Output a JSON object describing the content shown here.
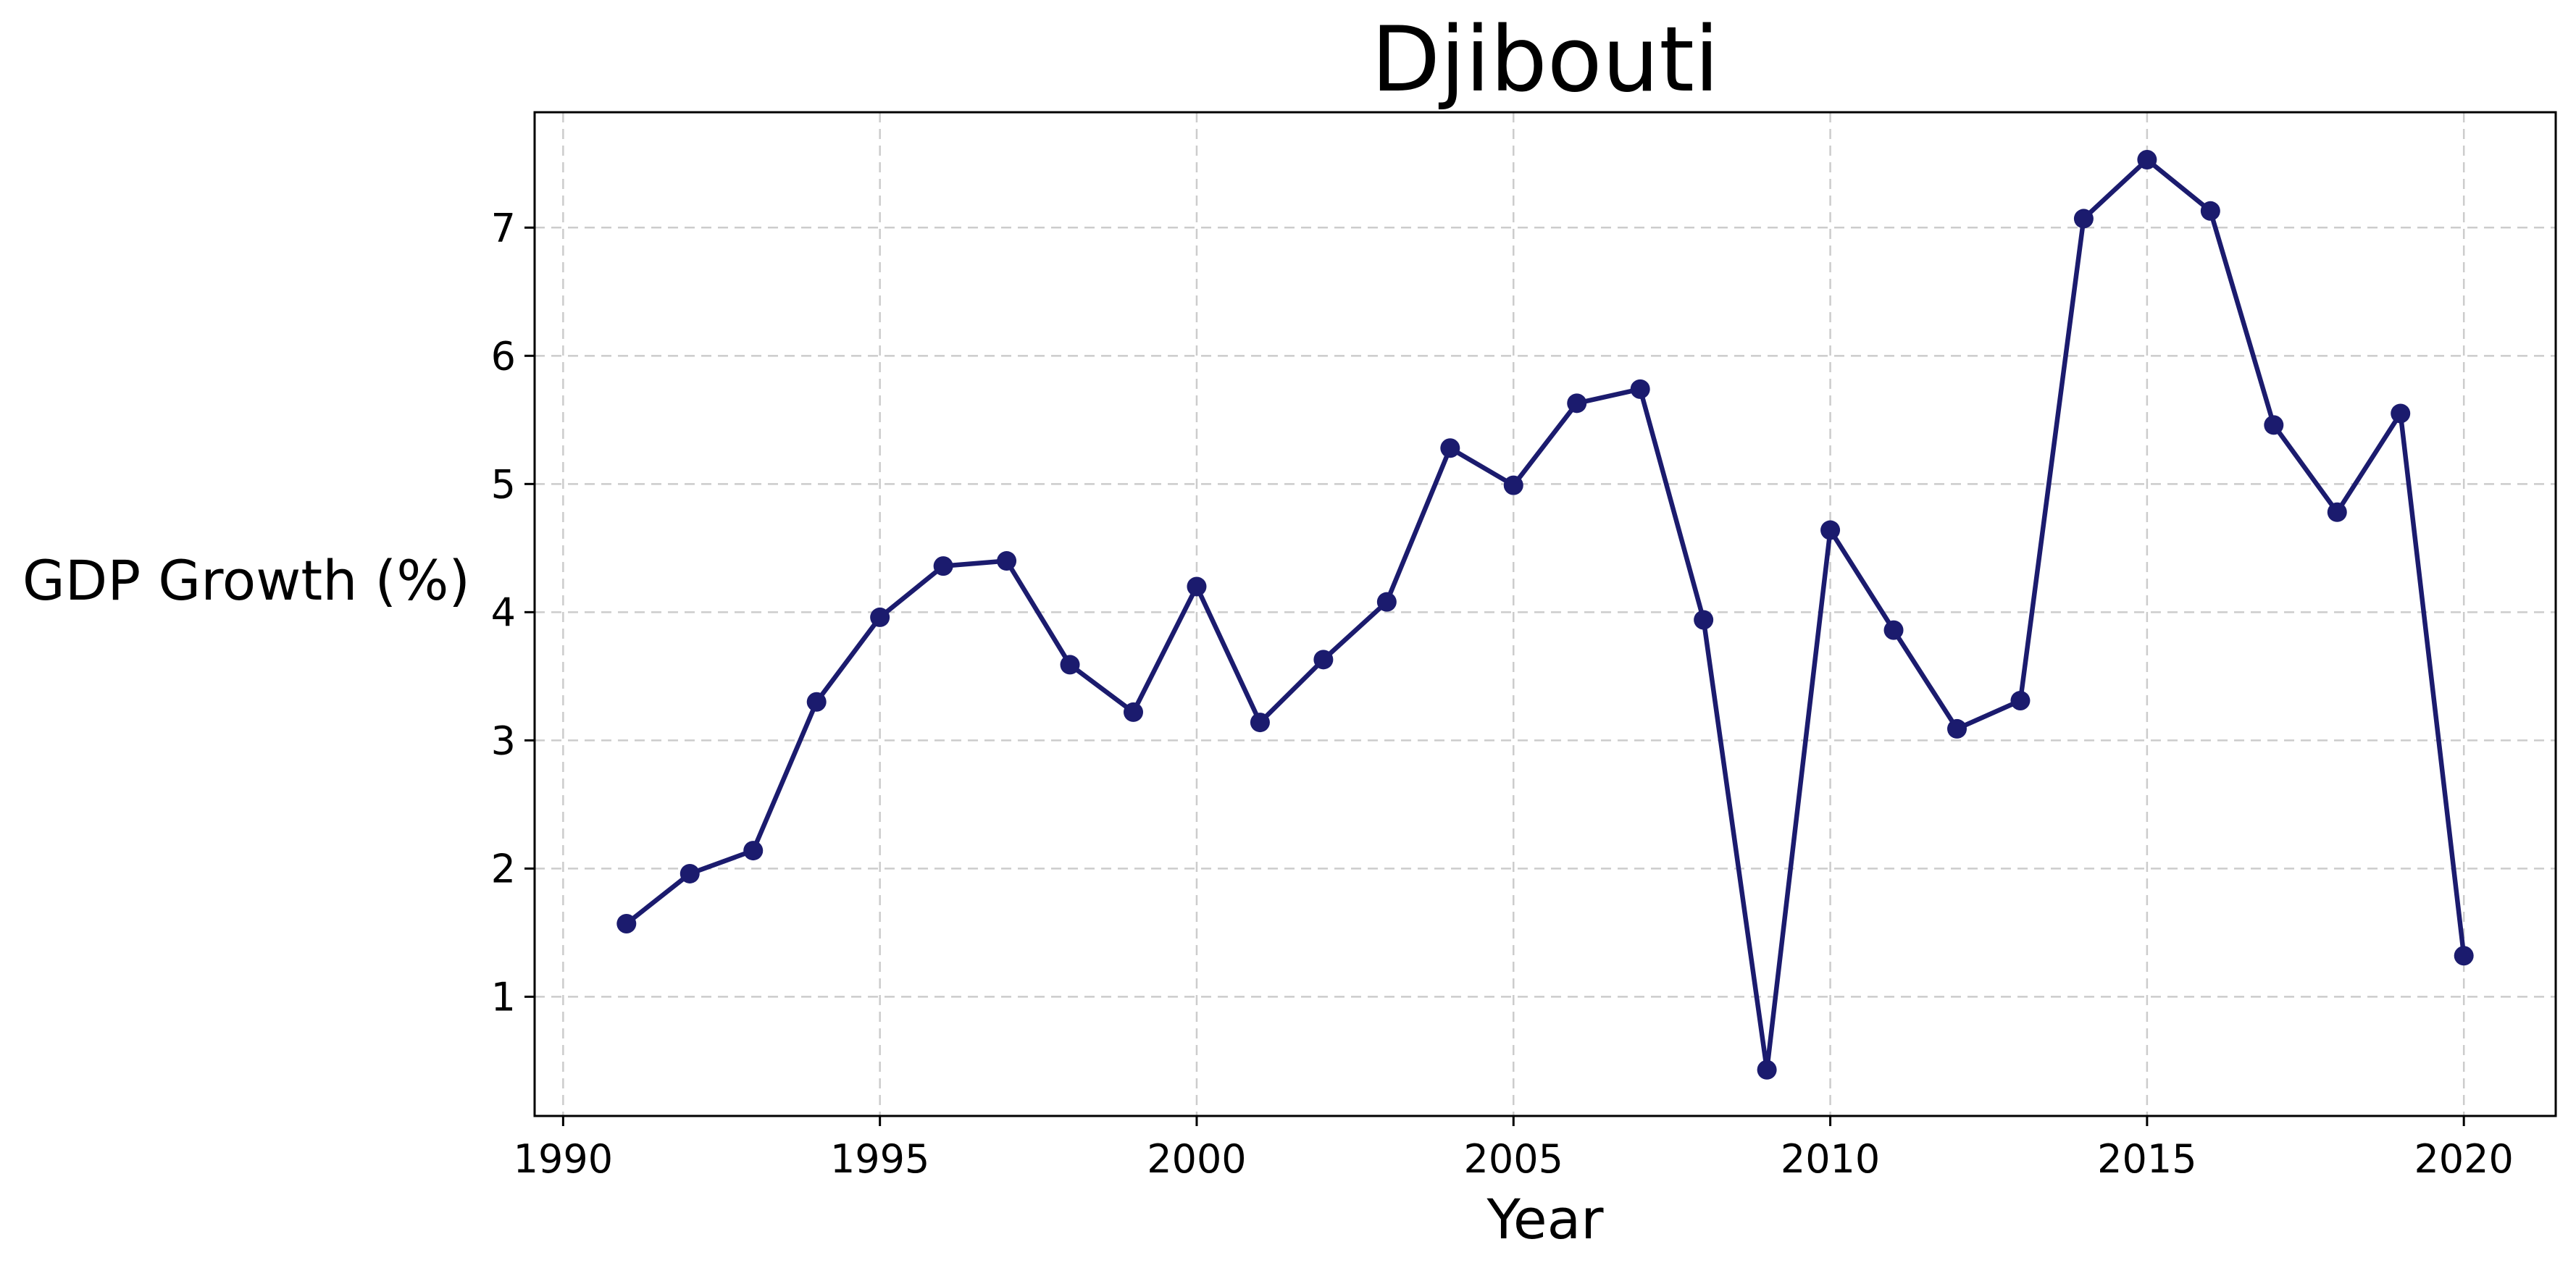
{
  "chart_data": {
    "type": "line",
    "title": "Djibouti",
    "xlabel": "Year",
    "ylabel": "GDP Growth (%)",
    "xlim": [
      1989.55,
      2021.45
    ],
    "ylim": [
      0.07,
      7.9
    ],
    "xticks": [
      1990,
      1995,
      2000,
      2005,
      2010,
      2015,
      2020
    ],
    "yticks": [
      1,
      2,
      3,
      4,
      5,
      6,
      7
    ],
    "grid": true,
    "colors": {
      "line": "#1b1b6e",
      "marker": "#1b1b6e",
      "grid": "#cccccc"
    },
    "series": [
      {
        "x": [
          1991,
          1992,
          1993,
          1994,
          1995,
          1996,
          1997,
          1998,
          1999,
          2000,
          2001,
          2002,
          2003,
          2004,
          2005,
          2006,
          2007,
          2008,
          2009,
          2010,
          2011,
          2012,
          2013,
          2014,
          2015,
          2016,
          2017,
          2018,
          2019,
          2020
        ],
        "values": [
          1.57,
          1.96,
          2.14,
          3.3,
          3.96,
          4.36,
          4.4,
          3.59,
          3.22,
          4.2,
          3.14,
          3.63,
          4.08,
          5.28,
          4.99,
          5.63,
          5.74,
          3.94,
          0.43,
          4.64,
          3.86,
          3.09,
          3.31,
          7.07,
          7.53,
          7.13,
          5.46,
          4.78,
          5.55,
          1.32
        ]
      }
    ]
  }
}
